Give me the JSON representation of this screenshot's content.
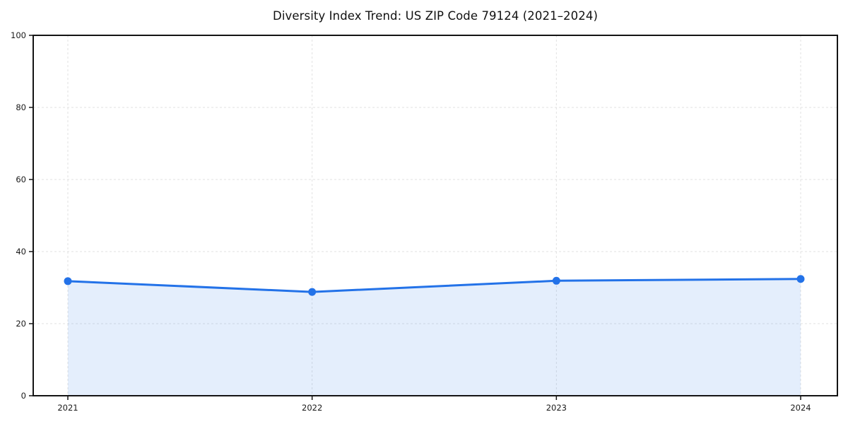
{
  "window": {
    "background_color": "#ffffff"
  },
  "chart_data": {
    "type": "area",
    "title": "Diversity Index Trend: US ZIP Code 79124 (2021–2024)",
    "categories": [
      "2021",
      "2022",
      "2023",
      "2024"
    ],
    "series": [
      {
        "name": "Diversity Index",
        "values": [
          31.8,
          28.8,
          31.9,
          32.4
        ]
      }
    ],
    "xlabel": "",
    "ylabel": "",
    "ylim": [
      0,
      100
    ],
    "yticks": [
      0,
      20,
      40,
      60,
      80,
      100
    ],
    "grid": "dashed-both-axes",
    "legend_position": "none",
    "line_color": "#2372e8",
    "marker": "circle",
    "marker_color": "#2372e8",
    "fill_color": "rgba(35, 114, 232, 0.12)",
    "gridline_color": "#e2e2e2",
    "spine_color": "#141414",
    "tick_text_color": "#1a1a1a"
  }
}
